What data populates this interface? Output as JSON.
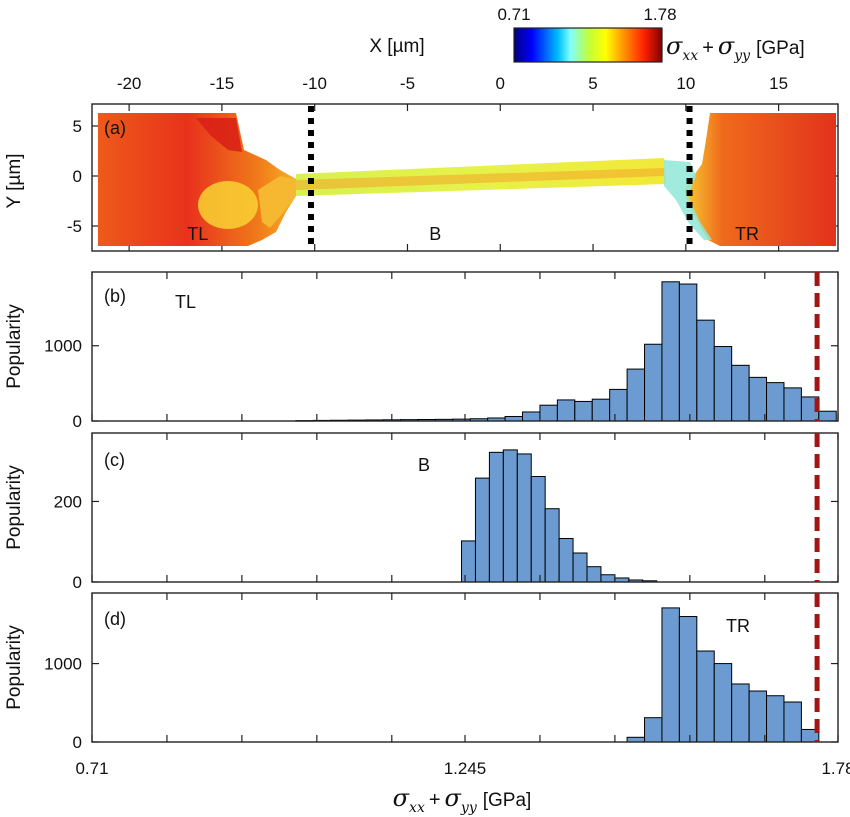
{
  "chart_data": [
    {
      "panel": "(a)",
      "type": "heatmap",
      "xlabel": "X [µm]",
      "ylabel": "Y [µm]",
      "x_ticks": [
        -20,
        -15,
        -10,
        -5,
        0,
        5,
        10,
        15
      ],
      "y_ticks": [
        5,
        0,
        -5
      ],
      "xlim": [
        -22,
        18.2
      ],
      "ylim": [
        -7.5,
        7.2
      ],
      "colorbar": {
        "min_label": "0.71",
        "max_label": "1.78",
        "label_main": "σ",
        "sub1": "xx",
        "plus": "+",
        "label_second": "σ",
        "sub2": "yy",
        "unit": "[GPa]",
        "colormap": "jet"
      },
      "divider_x": [
        -10.2,
        10.2
      ],
      "region_labels": [
        {
          "text": "TL",
          "x": -16.3,
          "y": -5.8
        },
        {
          "text": "B",
          "x": -3.5,
          "y": -5.8
        },
        {
          "text": "TR",
          "x": 13.3,
          "y": -5.8
        }
      ]
    },
    {
      "panel": "(b)",
      "type": "bar",
      "region": "TL",
      "ylabel": "Popularity",
      "xlim": [
        0.71,
        1.78
      ],
      "ylim": [
        0,
        1980
      ],
      "y_ticks": [
        0,
        1000
      ],
      "bin_width": 0.025,
      "x": [
        1.015,
        1.04,
        1.065,
        1.09,
        1.115,
        1.14,
        1.165,
        1.19,
        1.215,
        1.24,
        1.265,
        1.29,
        1.315,
        1.34,
        1.365,
        1.39,
        1.415,
        1.44,
        1.465,
        1.49,
        1.515,
        1.54,
        1.565,
        1.59,
        1.615,
        1.64,
        1.665,
        1.69,
        1.715,
        1.74,
        1.765
      ],
      "values": [
        5,
        8,
        10,
        12,
        14,
        16,
        18,
        20,
        22,
        25,
        30,
        40,
        60,
        120,
        210,
        280,
        260,
        290,
        420,
        690,
        1020,
        1850,
        1820,
        1340,
        990,
        740,
        580,
        510,
        440,
        320,
        130
      ],
      "threshold_x": 1.75
    },
    {
      "panel": "(c)",
      "type": "bar",
      "region": "B",
      "ylabel": "Popularity",
      "xlim": [
        0.71,
        1.78
      ],
      "ylim": [
        0,
        370
      ],
      "y_ticks": [
        0,
        200
      ],
      "bin_width": 0.02,
      "x": [
        1.25,
        1.27,
        1.29,
        1.31,
        1.33,
        1.35,
        1.37,
        1.39,
        1.41,
        1.43,
        1.45,
        1.47,
        1.49,
        1.51
      ],
      "values": [
        102,
        258,
        322,
        328,
        318,
        262,
        182,
        108,
        72,
        38,
        18,
        10,
        5,
        3
      ],
      "threshold_x": 1.75
    },
    {
      "panel": "(d)",
      "type": "bar",
      "region": "TR",
      "ylabel": "Popularity",
      "xlim": [
        0.71,
        1.78
      ],
      "ylim": [
        0,
        1900
      ],
      "y_ticks": [
        0,
        1000
      ],
      "bin_width": 0.025,
      "x": [
        1.49,
        1.515,
        1.54,
        1.565,
        1.59,
        1.615,
        1.64,
        1.665,
        1.69,
        1.715,
        1.74
      ],
      "values": [
        60,
        310,
        1710,
        1600,
        1160,
        1000,
        740,
        650,
        590,
        510,
        160
      ],
      "threshold_x": 1.75
    }
  ],
  "panel_labels": {
    "a": "(a)",
    "b": "(b)",
    "c": "(c)",
    "d": "(d)"
  },
  "region_tags": {
    "b": "TL",
    "c": "B",
    "d": "TR"
  },
  "bottom_axis": {
    "ticks": [
      "0.71",
      "1.245",
      "1.78"
    ],
    "tick_values": [
      0.71,
      1.245,
      1.78
    ],
    "label_main": "σ",
    "sub1": "xx",
    "plus": "+",
    "label_second": "σ",
    "sub2": "yy",
    "unit": "[GPa]"
  },
  "colors": {
    "bar_fill": "#6b9bd1",
    "bar_edge": "#000000",
    "threshold": "#a31515"
  }
}
